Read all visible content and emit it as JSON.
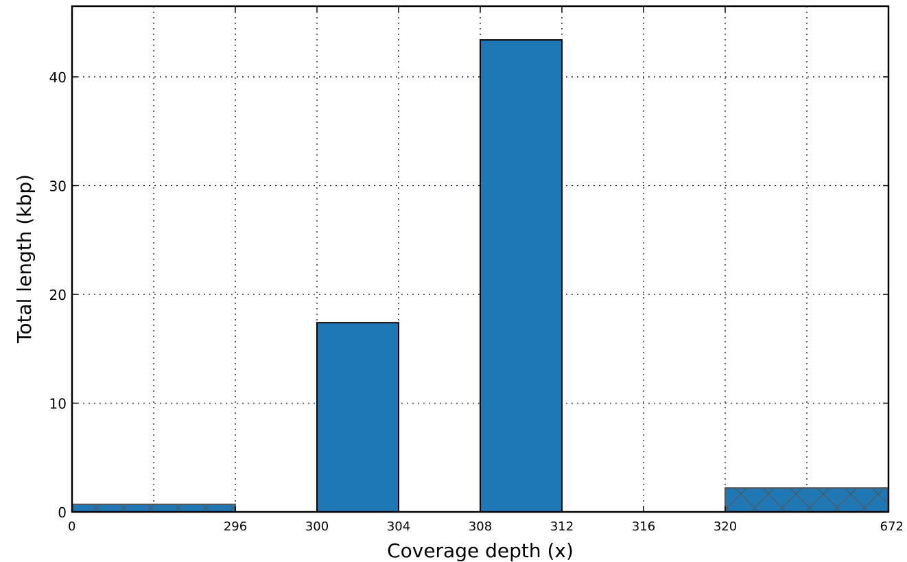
{
  "chart_data": {
    "type": "bar",
    "title": "",
    "xlabel": "Coverage depth (x)",
    "ylabel": "Total length (kbp)",
    "ylim": [
      0,
      46.5
    ],
    "grid": true,
    "x_tick_labels": [
      "0",
      "296",
      "300",
      "304",
      "308",
      "312",
      "316",
      "320",
      "672"
    ],
    "y_ticks": [
      0,
      10,
      20,
      30,
      40
    ],
    "bars": [
      {
        "from": "0",
        "to": "296",
        "value": 0.7,
        "hatched": true
      },
      {
        "from": "296",
        "to": "300",
        "value": 0,
        "hatched": false
      },
      {
        "from": "300",
        "to": "304",
        "value": 17.4,
        "hatched": false
      },
      {
        "from": "304",
        "to": "308",
        "value": 0,
        "hatched": false
      },
      {
        "from": "308",
        "to": "312",
        "value": 43.4,
        "hatched": false
      },
      {
        "from": "312",
        "to": "316",
        "value": 0,
        "hatched": false
      },
      {
        "from": "316",
        "to": "320",
        "value": 0,
        "hatched": false
      },
      {
        "from": "320",
        "to": "672",
        "value": 2.2,
        "hatched": true
      }
    ],
    "bar_color": "#1f77b4",
    "bar_edge_color": "#000000",
    "hatched_edge_color": "#555555"
  }
}
